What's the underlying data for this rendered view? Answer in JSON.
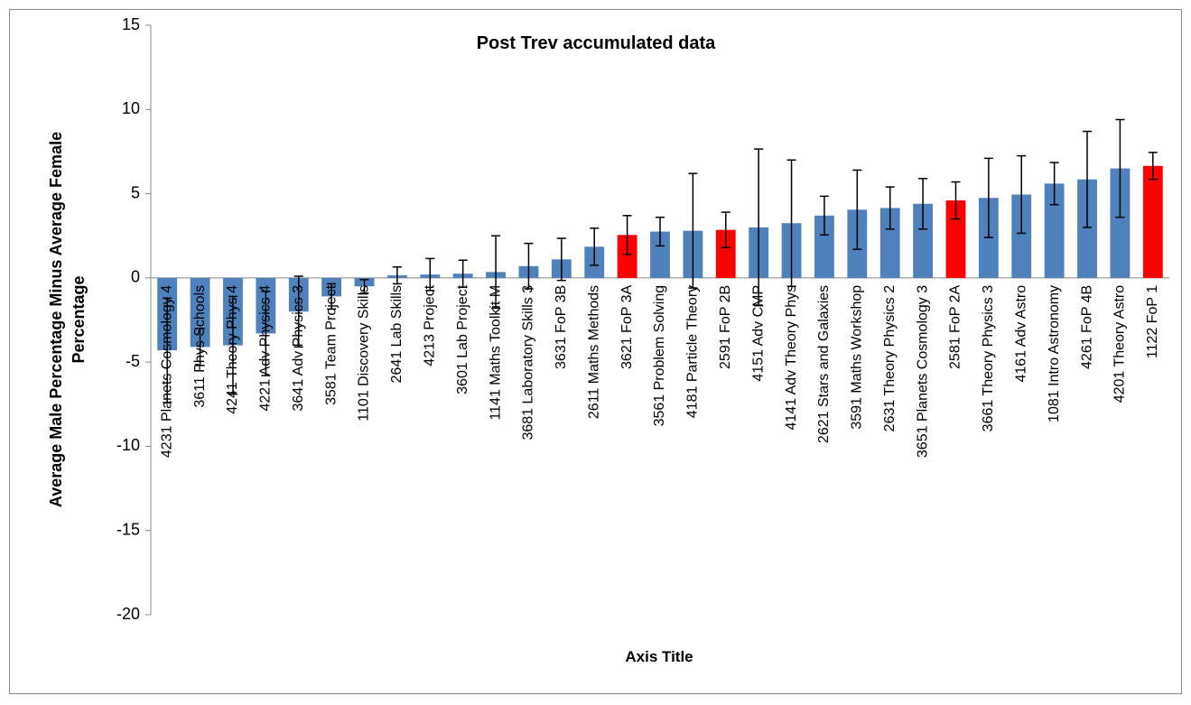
{
  "chart_data": {
    "type": "bar",
    "title": "Post Trev accumulated data",
    "xlabel": "Axis Title",
    "ylabel": [
      "Average Male Percentage Minus Average Female",
      "Percentage"
    ],
    "categories": [
      "4231 Planets Cosmology 4",
      "3611 Phys Schools",
      "4241 Theory Phys 4",
      "4221 Adv Physics 4",
      "3641 Adv Physics 3",
      "3581 Team Project",
      "1101 Discovery Skills",
      "2641 Lab Skills",
      "4213 Project",
      "3601 Lab Project",
      "1141 Maths Toolkit M",
      "3681 Laboratory Skills 3",
      "3631 FoP 3B",
      "2611 Maths Methods",
      "3621 FoP 3A",
      "3561 Problem Solving",
      "4181 Particle Theory",
      "2591 FoP 2B",
      "4151 Adv CMP",
      "4141 Adv Theory Phys",
      "2621 Stars and Galaxies",
      "3591 Maths Workshop",
      "2631 Theory Physics 2",
      "3651 Planets Cosmology 3",
      "2581 FoP 2A",
      "3661 Theory Physics 3",
      "4161 Adv Astro",
      "1081 Intro Astronomy",
      "4261 FoP 4B",
      "4201 Theory Astro",
      "1122 FoP 1"
    ],
    "values": [
      -4.3,
      -4.1,
      -4.0,
      -3.3,
      -2.0,
      -1.1,
      -0.5,
      0.15,
      0.2,
      0.25,
      0.35,
      0.7,
      1.1,
      1.85,
      2.55,
      2.75,
      2.8,
      2.85,
      3.0,
      3.25,
      3.7,
      4.05,
      4.15,
      4.4,
      4.6,
      4.75,
      4.95,
      5.6,
      5.85,
      6.5,
      6.65
    ],
    "errors": [
      3.1,
      1.1,
      2.9,
      2.5,
      2.1,
      0.75,
      0.4,
      0.5,
      0.95,
      0.8,
      2.15,
      1.35,
      1.25,
      1.1,
      1.15,
      0.85,
      3.4,
      1.05,
      4.65,
      3.75,
      1.15,
      2.35,
      1.25,
      1.5,
      1.1,
      2.35,
      2.3,
      1.25,
      2.85,
      2.9,
      0.8
    ],
    "colors": [
      "#4f81bd",
      "#4f81bd",
      "#4f81bd",
      "#4f81bd",
      "#4f81bd",
      "#4f81bd",
      "#4f81bd",
      "#4f81bd",
      "#4f81bd",
      "#4f81bd",
      "#4f81bd",
      "#4f81bd",
      "#4f81bd",
      "#4f81bd",
      "#ff0000",
      "#4f81bd",
      "#4f81bd",
      "#ff0000",
      "#4f81bd",
      "#4f81bd",
      "#4f81bd",
      "#4f81bd",
      "#4f81bd",
      "#4f81bd",
      "#ff0000",
      "#4f81bd",
      "#4f81bd",
      "#4f81bd",
      "#4f81bd",
      "#4f81bd",
      "#ff0000"
    ],
    "ylim": [
      -20,
      15
    ],
    "yticks": [
      -20,
      -15,
      -10,
      -5,
      0,
      5,
      10,
      15
    ],
    "grid": false
  }
}
